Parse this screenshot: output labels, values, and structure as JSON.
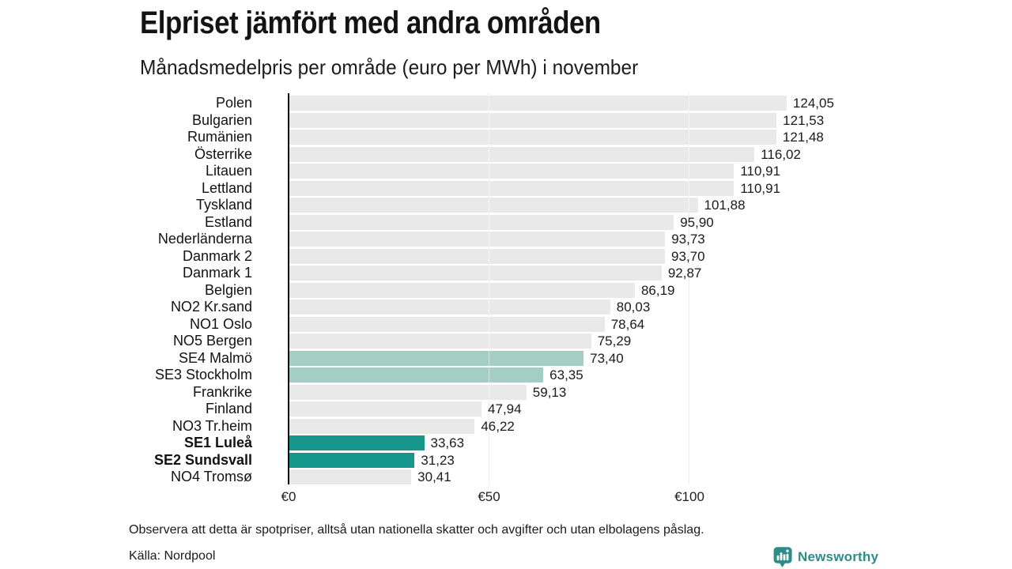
{
  "header": {
    "title": "Elpriset jämfört med andra områden",
    "subtitle": "Månadsmedelpris per område (euro per MWh) i november"
  },
  "chart_data": {
    "type": "bar",
    "orientation": "horizontal",
    "title": "Elpriset jämfört med andra områden",
    "subtitle": "Månadsmedelpris per område (euro per MWh) i november",
    "unit": "euro per MWh",
    "xlim": [
      0,
      128
    ],
    "grid": "vertical ticks at 50 and 100",
    "axis": {
      "ticks": [
        {
          "label": "€0",
          "value": 0
        },
        {
          "label": "€50",
          "value": 50
        },
        {
          "label": "€100",
          "value": 100
        }
      ]
    },
    "colors": {
      "default_bar": "#e9e9e9",
      "highlight_light": "#a4cdc6",
      "highlight_dark": "#17968b",
      "axis": "#0a0a0a",
      "gridline": "#d8d8d8"
    },
    "rows": [
      {
        "label": "Polen",
        "value": 124.05,
        "display": "124,05",
        "variant": "default",
        "bold": false
      },
      {
        "label": "Bulgarien",
        "value": 121.53,
        "display": "121,53",
        "variant": "default",
        "bold": false
      },
      {
        "label": "Rumänien",
        "value": 121.48,
        "display": "121,48",
        "variant": "default",
        "bold": false
      },
      {
        "label": "Österrike",
        "value": 116.02,
        "display": "116,02",
        "variant": "default",
        "bold": false
      },
      {
        "label": "Litauen",
        "value": 110.91,
        "display": "110,91",
        "variant": "default",
        "bold": false
      },
      {
        "label": "Lettland",
        "value": 110.91,
        "display": "110,91",
        "variant": "default",
        "bold": false
      },
      {
        "label": "Tyskland",
        "value": 101.88,
        "display": "101,88",
        "variant": "default",
        "bold": false
      },
      {
        "label": "Estland",
        "value": 95.9,
        "display": "95,90",
        "variant": "default",
        "bold": false
      },
      {
        "label": "Nederländerna",
        "value": 93.73,
        "display": "93,73",
        "variant": "default",
        "bold": false
      },
      {
        "label": "Danmark 2",
        "value": 93.7,
        "display": "93,70",
        "variant": "default",
        "bold": false
      },
      {
        "label": "Danmark 1",
        "value": 92.87,
        "display": "92,87",
        "variant": "default",
        "bold": false
      },
      {
        "label": "Belgien",
        "value": 86.19,
        "display": "86,19",
        "variant": "default",
        "bold": false
      },
      {
        "label": "NO2 Kr.sand",
        "value": 80.03,
        "display": "80,03",
        "variant": "default",
        "bold": false
      },
      {
        "label": "NO1 Oslo",
        "value": 78.64,
        "display": "78,64",
        "variant": "default",
        "bold": false
      },
      {
        "label": "NO5 Bergen",
        "value": 75.29,
        "display": "75,29",
        "variant": "default",
        "bold": false
      },
      {
        "label": "SE4 Malmö",
        "value": 73.4,
        "display": "73,40",
        "variant": "light",
        "bold": false
      },
      {
        "label": "SE3 Stockholm",
        "value": 63.35,
        "display": "63,35",
        "variant": "light",
        "bold": false
      },
      {
        "label": "Frankrike",
        "value": 59.13,
        "display": "59,13",
        "variant": "default",
        "bold": false
      },
      {
        "label": "Finland",
        "value": 47.94,
        "display": "47,94",
        "variant": "default",
        "bold": false
      },
      {
        "label": "NO3 Tr.heim",
        "value": 46.22,
        "display": "46,22",
        "variant": "default",
        "bold": false
      },
      {
        "label": "SE1 Luleå",
        "value": 33.63,
        "display": "33,63",
        "variant": "dark",
        "bold": true
      },
      {
        "label": "SE2 Sundsvall",
        "value": 31.23,
        "display": "31,23",
        "variant": "dark",
        "bold": true
      },
      {
        "label": "NO4 Tromsø",
        "value": 30.41,
        "display": "30,41",
        "variant": "default",
        "bold": false
      }
    ]
  },
  "footer": {
    "note": "Observera att detta är spotpriser, alltså utan nationella skatter och avgifter och utan elbolagens påslag.",
    "source": "Källa: Nordpool",
    "brand": "Newsworthy",
    "brand_color": "#2e8c88"
  }
}
